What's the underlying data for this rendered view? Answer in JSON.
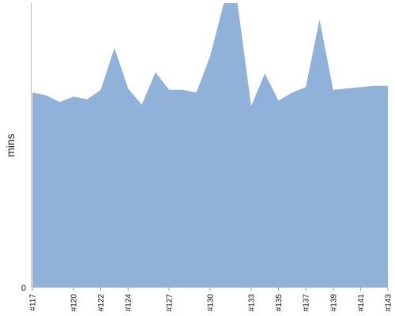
{
  "chart_data": {
    "type": "area",
    "ylabel": "mins",
    "yticks": [
      0
    ],
    "ylim": [
      0,
      10.5
    ],
    "x": [
      "#117",
      "#118",
      "#119",
      "#120",
      "#121",
      "#122",
      "#123",
      "#124",
      "#125",
      "#126",
      "#127",
      "#128",
      "#129",
      "#130",
      "#131",
      "#132",
      "#133",
      "#134",
      "#135",
      "#136",
      "#137",
      "#138",
      "#139",
      "#140",
      "#141",
      "#142",
      "#143"
    ],
    "tick_labels": [
      "#117",
      "#120",
      "#122",
      "#124",
      "#127",
      "#130",
      "#133",
      "#135",
      "#137",
      "#139",
      "#141",
      "#143"
    ],
    "series": [
      {
        "values": [
          7.2,
          7.1,
          6.85,
          7.05,
          6.95,
          7.3,
          8.85,
          7.35,
          6.75,
          7.95,
          7.3,
          7.3,
          7.2,
          8.55,
          14.0,
          14.0,
          6.7,
          7.9,
          6.9,
          7.2,
          7.4,
          9.9,
          7.3,
          7.35,
          7.4,
          7.45,
          7.45
        ],
        "color": "#8fb1da"
      }
    ],
    "grid": false,
    "legend": "none"
  }
}
